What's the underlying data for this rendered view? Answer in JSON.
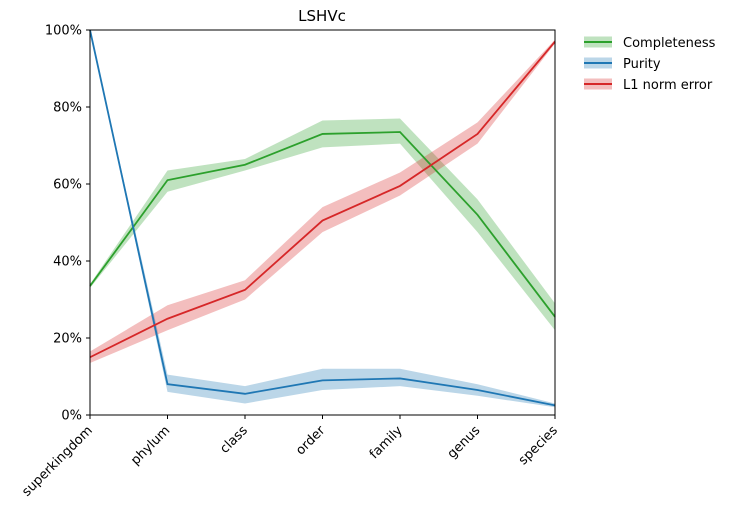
{
  "chart_data": {
    "type": "line",
    "title": "LSHVc",
    "xlabel": "",
    "ylabel": "",
    "categories": [
      "superkingdom",
      "phylum",
      "class",
      "order",
      "family",
      "genus",
      "species"
    ],
    "ylim": [
      0,
      100
    ],
    "yticks": [
      "0%",
      "20%",
      "40%",
      "60%",
      "80%",
      "100%"
    ],
    "ytick_values": [
      0,
      20,
      40,
      60,
      80,
      100
    ],
    "grid": false,
    "legend_position": "outside top-right",
    "series": [
      {
        "name": "Completeness",
        "color": "#2ca02c",
        "values": [
          33.5,
          61,
          65,
          73,
          73.5,
          52,
          25.5
        ],
        "lower": [
          33.0,
          58,
          63.5,
          69.5,
          70.5,
          47.5,
          22
        ],
        "upper": [
          34.0,
          63.5,
          66.5,
          76.5,
          77,
          56,
          29
        ]
      },
      {
        "name": "Purity",
        "color": "#1f77b4",
        "values": [
          100,
          8,
          5.5,
          9,
          9.5,
          6.5,
          2.5
        ],
        "lower": [
          100,
          6,
          3,
          6.5,
          7.5,
          5,
          2
        ],
        "upper": [
          100,
          10.5,
          7.5,
          12,
          12,
          8,
          3
        ]
      },
      {
        "name": "L1 norm error",
        "color": "#d62728",
        "values": [
          15,
          25,
          32.5,
          50.5,
          59.5,
          73,
          97
        ],
        "lower": [
          13.5,
          22,
          30,
          47.5,
          57,
          70.5,
          96.5
        ],
        "upper": [
          16.5,
          28.5,
          35,
          54,
          63,
          76,
          97.5
        ]
      }
    ]
  }
}
